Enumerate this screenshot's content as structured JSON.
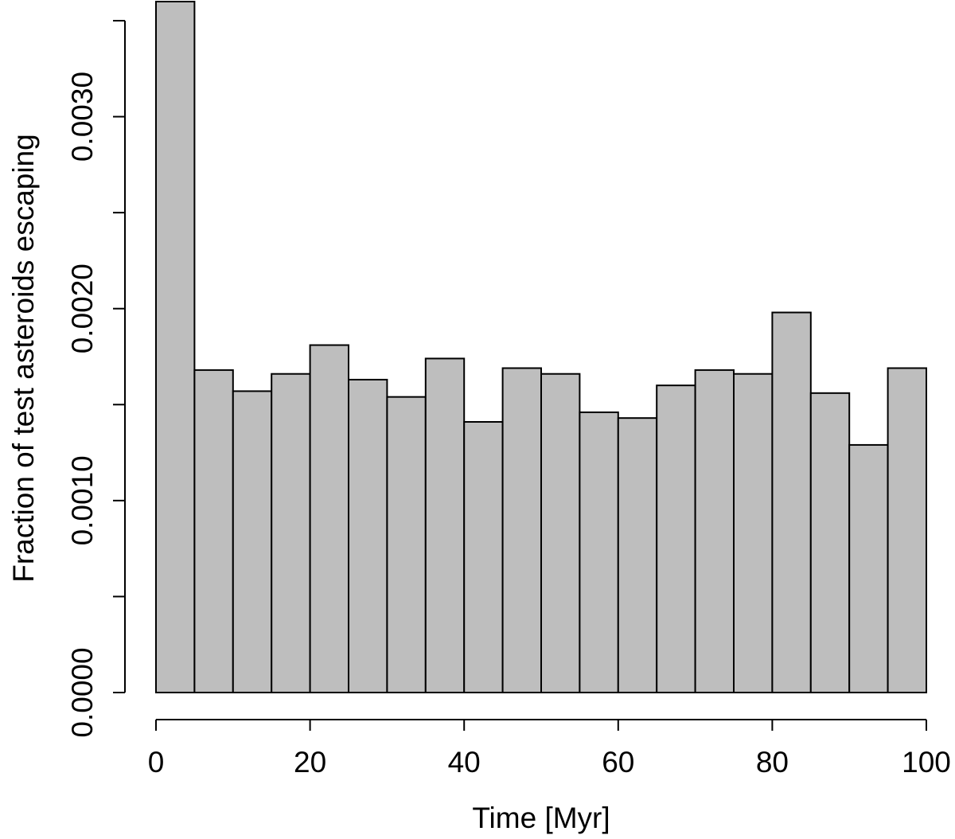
{
  "chart_data": {
    "type": "bar",
    "xlabel": "Time [Myr]",
    "ylabel": "Fraction of test asteroids escaping",
    "xlim": [
      0,
      100
    ],
    "ylim": [
      0,
      0.0036
    ],
    "bin_edges": [
      0,
      5,
      10,
      15,
      20,
      25,
      30,
      35,
      40,
      45,
      50,
      55,
      60,
      65,
      70,
      75,
      80,
      85,
      90,
      95,
      100
    ],
    "values": [
      0.0036,
      0.00168,
      0.00157,
      0.00166,
      0.00181,
      0.00163,
      0.00154,
      0.00174,
      0.00141,
      0.00169,
      0.00166,
      0.00146,
      0.00143,
      0.0016,
      0.00168,
      0.00166,
      0.00198,
      0.00156,
      0.00129,
      0.00169
    ],
    "x_ticks": [
      0,
      20,
      40,
      60,
      80,
      100
    ],
    "x_tick_labels": [
      "0",
      "20",
      "40",
      "60",
      "80",
      "100"
    ],
    "y_ticks": [
      0,
      0.0005,
      0.001,
      0.0015,
      0.002,
      0.0025,
      0.003,
      0.0035
    ],
    "y_tick_labels": [
      "0.0000",
      "",
      "0.0010",
      "",
      "0.0020",
      "",
      "0.0030",
      ""
    ],
    "bar_color": "#bebebe",
    "edge_color": "#000000",
    "grid": false,
    "legend": "none"
  }
}
